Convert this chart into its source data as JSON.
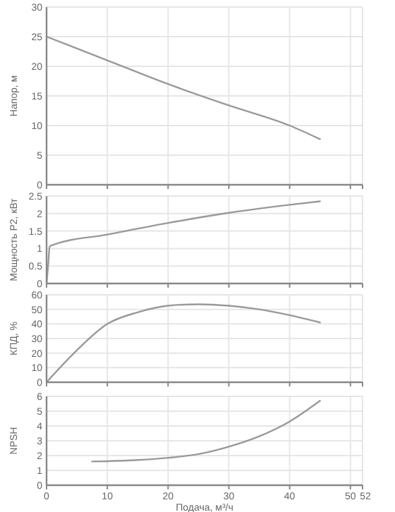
{
  "chart_data": [
    {
      "type": "line",
      "ylabel": "Напор, м",
      "x": [
        0,
        10,
        20,
        30,
        40,
        45
      ],
      "series": [
        {
          "color": "#999999",
          "values": [
            25,
            21,
            17,
            13.4,
            10,
            7.7
          ]
        }
      ],
      "xlim": [
        0,
        52
      ],
      "xticks": [
        0,
        10,
        20,
        30,
        40,
        50,
        52
      ],
      "ylim": [
        0,
        30
      ],
      "yticks": [
        0,
        5,
        10,
        15,
        20,
        25,
        30
      ],
      "grid": true,
      "tick_labels": "y"
    },
    {
      "type": "line",
      "ylabel": "Мощность P2, кВт",
      "x": [
        0,
        0.3,
        0.5,
        1,
        10,
        20,
        30,
        40,
        45
      ],
      "series": [
        {
          "color": "#999999",
          "values": [
            0,
            0.6,
            1.05,
            1.1,
            1.4,
            1.73,
            2.02,
            2.25,
            2.35
          ]
        }
      ],
      "xlim": [
        0,
        52
      ],
      "xticks": [
        0,
        10,
        20,
        30,
        40,
        50,
        52
      ],
      "ylim": [
        0,
        2.5
      ],
      "yticks": [
        0,
        0.5,
        1,
        1.5,
        2,
        2.5
      ],
      "grid": true,
      "tick_labels": "y"
    },
    {
      "type": "line",
      "ylabel": "КПД, %",
      "x": [
        0,
        5,
        10,
        15,
        20,
        25,
        30,
        35,
        40,
        45
      ],
      "series": [
        {
          "color": "#999999",
          "values": [
            0,
            22,
            40,
            48,
            52.5,
            53.5,
            52.5,
            50,
            46,
            41
          ]
        }
      ],
      "xlim": [
        0,
        52
      ],
      "xticks": [
        0,
        10,
        20,
        30,
        40,
        50,
        52
      ],
      "ylim": [
        0,
        60
      ],
      "yticks": [
        0,
        10,
        20,
        30,
        40,
        50,
        60
      ],
      "grid": true,
      "tick_labels": "y"
    },
    {
      "type": "line",
      "ylabel": "NPSH",
      "xlabel": "Подача, м³/ч",
      "x": [
        7.5,
        10,
        15,
        20,
        25,
        30,
        35,
        40,
        45
      ],
      "series": [
        {
          "color": "#999999",
          "values": [
            1.6,
            1.62,
            1.7,
            1.85,
            2.1,
            2.6,
            3.3,
            4.3,
            5.7
          ]
        }
      ],
      "xlim": [
        0,
        52
      ],
      "xticks": [
        0,
        10,
        20,
        30,
        40,
        50,
        52
      ],
      "ylim": [
        0,
        6
      ],
      "yticks": [
        0,
        1,
        2,
        3,
        4,
        5,
        6
      ],
      "grid": true
    }
  ]
}
